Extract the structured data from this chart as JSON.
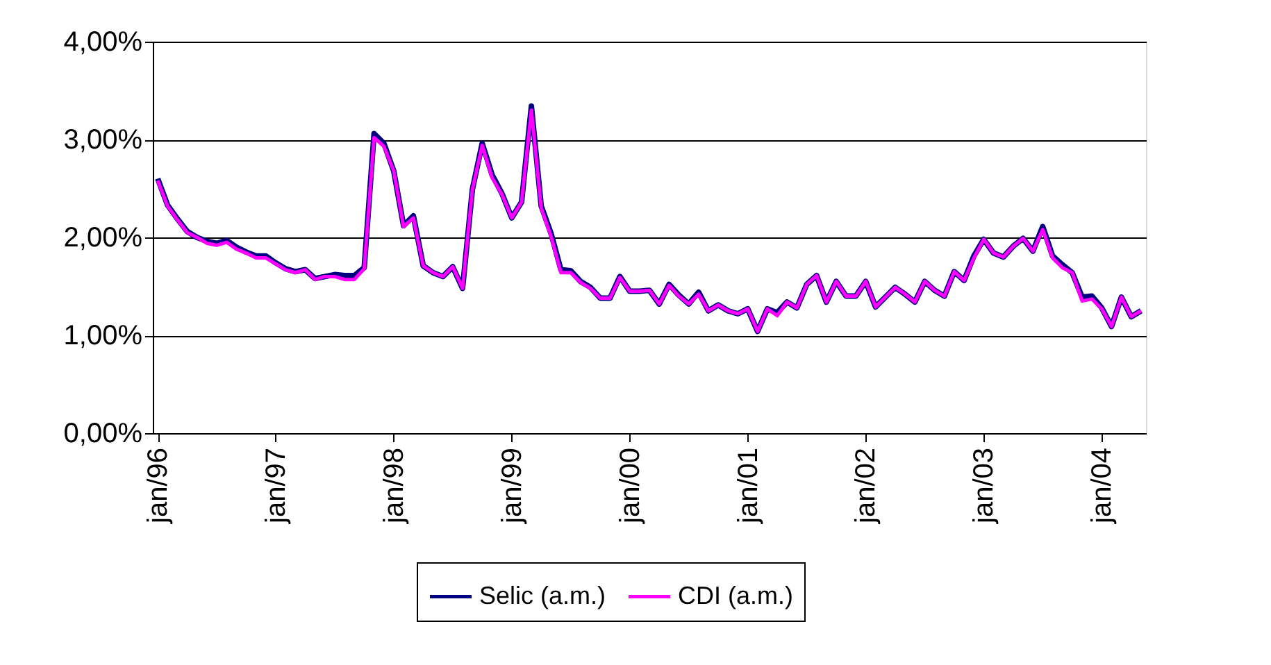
{
  "chart_data": {
    "type": "line",
    "categories": [
      "jan/96",
      null,
      null,
      null,
      null,
      null,
      null,
      null,
      null,
      null,
      null,
      null,
      "jan/97",
      null,
      null,
      null,
      null,
      null,
      null,
      null,
      null,
      null,
      null,
      null,
      "jan/98",
      null,
      null,
      null,
      null,
      null,
      null,
      null,
      null,
      null,
      null,
      null,
      "jan/99",
      null,
      null,
      null,
      null,
      null,
      null,
      null,
      null,
      null,
      null,
      null,
      "jan/00",
      null,
      null,
      null,
      null,
      null,
      null,
      null,
      null,
      null,
      null,
      null,
      "jan/01",
      null,
      null,
      null,
      null,
      null,
      null,
      null,
      null,
      null,
      null,
      null,
      "jan/02",
      null,
      null,
      null,
      null,
      null,
      null,
      null,
      null,
      null,
      null,
      null,
      "jan/03",
      null,
      null,
      null,
      null,
      null,
      null,
      null,
      null,
      null,
      null,
      null,
      "jan/04",
      null,
      null,
      null,
      null
    ],
    "series": [
      {
        "name": "Selic (a.m.)",
        "color": "#000080",
        "values": [
          2.6,
          2.33,
          2.19,
          2.06,
          2.0,
          1.96,
          1.94,
          1.97,
          1.9,
          1.85,
          1.81,
          1.81,
          1.74,
          1.68,
          1.65,
          1.67,
          1.58,
          1.6,
          1.62,
          1.61,
          1.61,
          1.69,
          3.06,
          2.96,
          2.68,
          2.12,
          2.22,
          1.71,
          1.64,
          1.6,
          1.7,
          1.48,
          2.49,
          2.96,
          2.64,
          2.45,
          2.2,
          2.36,
          3.34,
          2.32,
          2.04,
          1.67,
          1.66,
          1.55,
          1.49,
          1.38,
          1.38,
          1.6,
          1.45,
          1.45,
          1.46,
          1.32,
          1.52,
          1.41,
          1.32,
          1.44,
          1.25,
          1.31,
          1.25,
          1.22,
          1.27,
          1.04,
          1.27,
          1.23,
          1.34,
          1.28,
          1.52,
          1.61,
          1.34,
          1.55,
          1.4,
          1.4,
          1.55,
          1.29,
          1.39,
          1.49,
          1.42,
          1.34,
          1.55,
          1.46,
          1.4,
          1.65,
          1.56,
          1.81,
          1.98,
          1.84,
          1.8,
          1.91,
          1.99,
          1.86,
          2.11,
          1.81,
          1.72,
          1.64,
          1.39,
          1.4,
          1.28,
          1.09,
          1.39,
          1.19,
          1.25
        ]
      },
      {
        "name": "CDI (a.m.)",
        "color": "#ff00ff",
        "values": [
          2.58,
          2.32,
          2.18,
          2.05,
          2.0,
          1.94,
          1.92,
          1.95,
          1.88,
          1.84,
          1.79,
          1.79,
          1.73,
          1.67,
          1.64,
          1.67,
          1.57,
          1.6,
          1.6,
          1.57,
          1.57,
          1.68,
          3.02,
          2.93,
          2.68,
          2.11,
          2.2,
          1.71,
          1.64,
          1.6,
          1.7,
          1.48,
          2.49,
          2.94,
          2.61,
          2.44,
          2.2,
          2.36,
          3.3,
          2.3,
          2.01,
          1.64,
          1.64,
          1.54,
          1.48,
          1.38,
          1.38,
          1.59,
          1.45,
          1.45,
          1.46,
          1.32,
          1.51,
          1.4,
          1.32,
          1.42,
          1.25,
          1.31,
          1.25,
          1.22,
          1.27,
          1.04,
          1.27,
          1.2,
          1.34,
          1.28,
          1.52,
          1.61,
          1.34,
          1.55,
          1.4,
          1.4,
          1.55,
          1.29,
          1.39,
          1.49,
          1.42,
          1.34,
          1.55,
          1.46,
          1.4,
          1.65,
          1.56,
          1.79,
          1.98,
          1.84,
          1.8,
          1.91,
          1.99,
          1.86,
          2.08,
          1.79,
          1.69,
          1.64,
          1.35,
          1.37,
          1.27,
          1.09,
          1.39,
          1.19,
          1.25
        ]
      }
    ],
    "ylim": [
      0,
      4
    ],
    "yticks": [
      {
        "value": 0,
        "label": "0,00%"
      },
      {
        "value": 1,
        "label": "1,00%"
      },
      {
        "value": 2,
        "label": "2,00%"
      },
      {
        "value": 3,
        "label": "3,00%"
      },
      {
        "value": 4,
        "label": "4,00%"
      }
    ],
    "grid": "y",
    "legend": "bottom",
    "marker": "none",
    "line_style": "solid"
  }
}
